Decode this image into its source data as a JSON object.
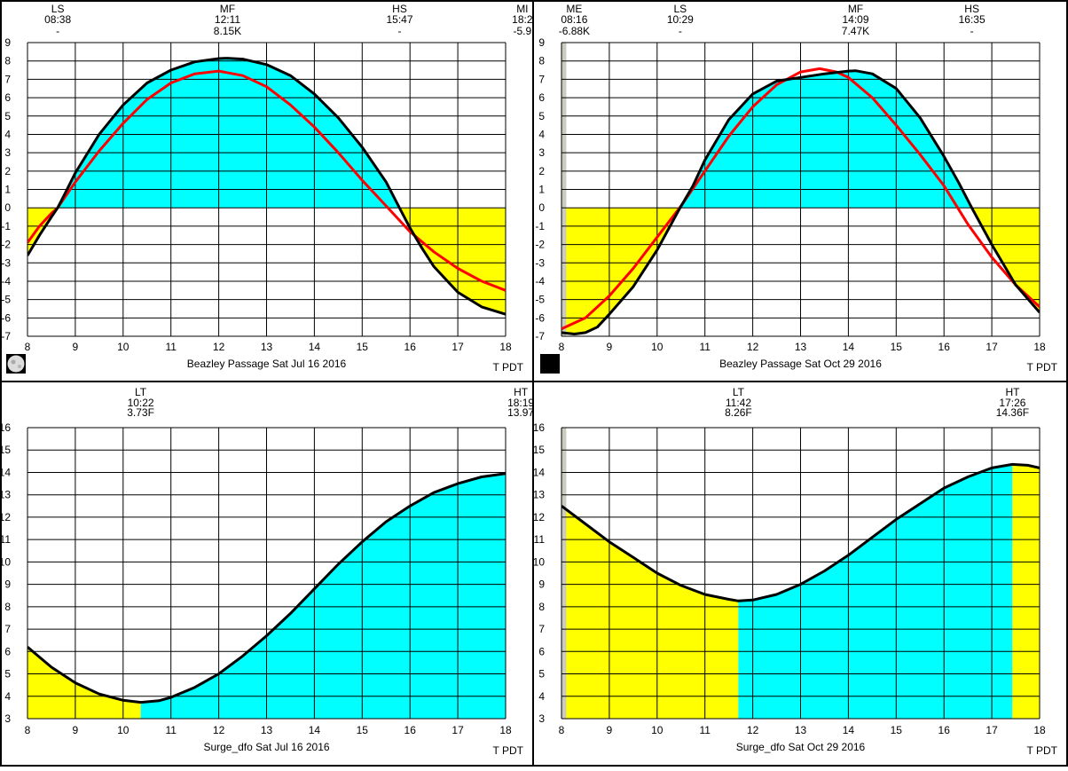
{
  "chart_data": [
    {
      "type": "area",
      "title": "Beazley Passage Sat Jul 16 2016",
      "timezone_label": "T  PDT",
      "moon_icon": "full-moon-icon",
      "xlim": [
        8,
        18
      ],
      "ylim": [
        -7,
        9
      ],
      "x_ticks": [
        "8",
        "9",
        "10",
        "11",
        "12",
        "13",
        "14",
        "15",
        "16",
        "17",
        "18"
      ],
      "y_ticks": [
        "9",
        "8",
        "7",
        "6",
        "5",
        "4",
        "3",
        "2",
        "1",
        "0",
        "-1",
        "-2",
        "-3",
        "-4",
        "-5",
        "-6",
        "-7"
      ],
      "events": [
        {
          "label": "LS",
          "time": "08:38",
          "value": "-",
          "x": 8.633
        },
        {
          "label": "MF",
          "time": "12:11",
          "value": "8.15K",
          "x": 12.183
        },
        {
          "label": "HS",
          "time": "15:47",
          "value": "-",
          "x": 15.783
        },
        {
          "label": "MI",
          "time": "18:2",
          "value": "-5.9",
          "x": 18.35
        }
      ],
      "series": [
        {
          "role": "primary",
          "x": [
            8.0,
            8.25,
            8.5,
            8.63,
            8.75,
            9.0,
            9.5,
            10.0,
            10.5,
            11.0,
            11.5,
            12.0,
            12.18,
            12.5,
            13.0,
            13.5,
            14.0,
            14.5,
            15.0,
            15.5,
            15.78,
            16.0,
            16.25,
            16.5,
            17.0,
            17.5,
            18.0
          ],
          "y": [
            -2.6,
            -1.5,
            -0.5,
            0.0,
            0.6,
            1.9,
            4.0,
            5.6,
            6.8,
            7.5,
            7.95,
            8.13,
            8.15,
            8.1,
            7.8,
            7.2,
            6.2,
            4.9,
            3.3,
            1.4,
            0.0,
            -1.1,
            -2.2,
            -3.2,
            -4.6,
            -5.4,
            -5.8
          ]
        },
        {
          "role": "secondary",
          "x": [
            8.0,
            8.25,
            8.5,
            8.63,
            9.0,
            9.5,
            10.0,
            10.5,
            11.0,
            11.5,
            12.0,
            12.5,
            13.0,
            13.5,
            14.0,
            14.5,
            15.0,
            15.5,
            16.0,
            16.5,
            17.0,
            17.5,
            18.0
          ],
          "y": [
            -1.9,
            -1.0,
            -0.3,
            0.0,
            1.4,
            3.1,
            4.6,
            5.9,
            6.8,
            7.3,
            7.45,
            7.2,
            6.6,
            5.6,
            4.4,
            3.0,
            1.5,
            0.1,
            -1.3,
            -2.4,
            -3.3,
            -4.0,
            -4.5
          ]
        }
      ]
    },
    {
      "type": "area",
      "title": "Beazley Passage Sat Oct 29 2016",
      "timezone_label": "T  PDT",
      "moon_icon": "new-moon-icon",
      "xlim": [
        8,
        18
      ],
      "ylim": [
        -7,
        9
      ],
      "x_ticks": [
        "8",
        "9",
        "10",
        "11",
        "12",
        "13",
        "14",
        "15",
        "16",
        "17",
        "18"
      ],
      "y_ticks": [
        "9",
        "8",
        "7",
        "6",
        "5",
        "4",
        "3",
        "2",
        "1",
        "0",
        "-1",
        "-2",
        "-3",
        "-4",
        "-5",
        "-6",
        "-7"
      ],
      "night_until": 8.1,
      "events": [
        {
          "label": "ME",
          "time": "08:16",
          "value": "-6.88K",
          "x": 8.267
        },
        {
          "label": "LS",
          "time": "10:29",
          "value": "-",
          "x": 10.483
        },
        {
          "label": "MF",
          "time": "14:09",
          "value": "7.47K",
          "x": 14.15
        },
        {
          "label": "HS",
          "time": "16:35",
          "value": "-",
          "x": 16.583
        }
      ],
      "series": [
        {
          "role": "primary",
          "x": [
            8.0,
            8.27,
            8.5,
            8.75,
            9.0,
            9.5,
            10.0,
            10.25,
            10.48,
            10.75,
            11.0,
            11.5,
            12.0,
            12.5,
            13.0,
            13.5,
            14.0,
            14.15,
            14.5,
            15.0,
            15.5,
            16.0,
            16.3,
            16.58,
            17.0,
            17.5,
            18.0
          ],
          "y": [
            -6.8,
            -6.88,
            -6.8,
            -6.5,
            -5.8,
            -4.3,
            -2.3,
            -1.1,
            0.0,
            1.2,
            2.6,
            4.8,
            6.2,
            6.9,
            7.1,
            7.3,
            7.45,
            7.47,
            7.3,
            6.5,
            4.9,
            2.8,
            1.4,
            0.0,
            -2.0,
            -4.2,
            -5.7
          ]
        },
        {
          "role": "secondary",
          "x": [
            8.0,
            8.5,
            9.0,
            9.5,
            10.0,
            10.5,
            11.0,
            11.5,
            12.0,
            12.5,
            13.0,
            13.4,
            13.75,
            14.0,
            14.5,
            15.0,
            15.5,
            16.0,
            16.5,
            17.0,
            17.5,
            18.0
          ],
          "y": [
            -6.6,
            -6.0,
            -4.8,
            -3.3,
            -1.6,
            0.1,
            2.0,
            3.9,
            5.5,
            6.7,
            7.4,
            7.58,
            7.4,
            7.1,
            6.0,
            4.5,
            2.9,
            1.2,
            -0.9,
            -2.7,
            -4.2,
            -5.4
          ]
        }
      ]
    },
    {
      "type": "area",
      "title": "Surge_dfo Sat Jul 16 2016",
      "timezone_label": "T  PDT",
      "xlim": [
        8,
        18
      ],
      "ylim": [
        3,
        16
      ],
      "x_ticks": [
        "8",
        "9",
        "10",
        "11",
        "12",
        "13",
        "14",
        "15",
        "16",
        "17",
        "18"
      ],
      "y_ticks": [
        "16",
        "15",
        "14",
        "13",
        "12",
        "11",
        "10",
        "9",
        "8",
        "7",
        "6",
        "5",
        "4",
        "3"
      ],
      "shade_split": [
        10.37,
        18.33
      ],
      "events": [
        {
          "label": "LT",
          "time": "10:22",
          "value": "3.73F",
          "x": 10.367
        },
        {
          "label": "HT",
          "time": "18:19",
          "value": "13.97",
          "x": 18.317
        }
      ],
      "series": [
        {
          "role": "primary",
          "x": [
            8.0,
            8.5,
            9.0,
            9.5,
            10.0,
            10.37,
            10.75,
            11.0,
            11.5,
            12.0,
            12.5,
            13.0,
            13.5,
            14.0,
            14.5,
            15.0,
            15.5,
            16.0,
            16.5,
            17.0,
            17.5,
            18.0
          ],
          "y": [
            6.2,
            5.3,
            4.6,
            4.1,
            3.82,
            3.73,
            3.8,
            3.95,
            4.4,
            5.0,
            5.8,
            6.7,
            7.7,
            8.8,
            9.9,
            10.9,
            11.8,
            12.5,
            13.1,
            13.5,
            13.8,
            13.95
          ]
        }
      ]
    },
    {
      "type": "area",
      "title": "Surge_dfo Sat Oct 29 2016",
      "timezone_label": "T  PDT",
      "xlim": [
        8,
        18
      ],
      "ylim": [
        3,
        16
      ],
      "x_ticks": [
        "8",
        "9",
        "10",
        "11",
        "12",
        "13",
        "14",
        "15",
        "16",
        "17",
        "18"
      ],
      "y_ticks": [
        "16",
        "15",
        "14",
        "13",
        "12",
        "11",
        "10",
        "9",
        "8",
        "7",
        "6",
        "5",
        "4",
        "3"
      ],
      "night_until": 8.1,
      "shade_split": [
        11.7,
        17.43
      ],
      "events": [
        {
          "label": "LT",
          "time": "11:42",
          "value": "8.26F",
          "x": 11.7
        },
        {
          "label": "HT",
          "time": "17:26",
          "value": "14.36F",
          "x": 17.433
        }
      ],
      "series": [
        {
          "role": "primary",
          "x": [
            8.0,
            8.5,
            9.0,
            9.5,
            10.0,
            10.5,
            11.0,
            11.5,
            11.7,
            12.0,
            12.5,
            13.0,
            13.5,
            14.0,
            14.5,
            15.0,
            15.5,
            16.0,
            16.5,
            17.0,
            17.43,
            17.75,
            18.0
          ],
          "y": [
            12.5,
            11.7,
            10.9,
            10.2,
            9.5,
            8.95,
            8.55,
            8.33,
            8.26,
            8.3,
            8.55,
            9.0,
            9.6,
            10.3,
            11.1,
            11.9,
            12.6,
            13.3,
            13.8,
            14.2,
            14.36,
            14.32,
            14.2
          ]
        }
      ]
    }
  ]
}
